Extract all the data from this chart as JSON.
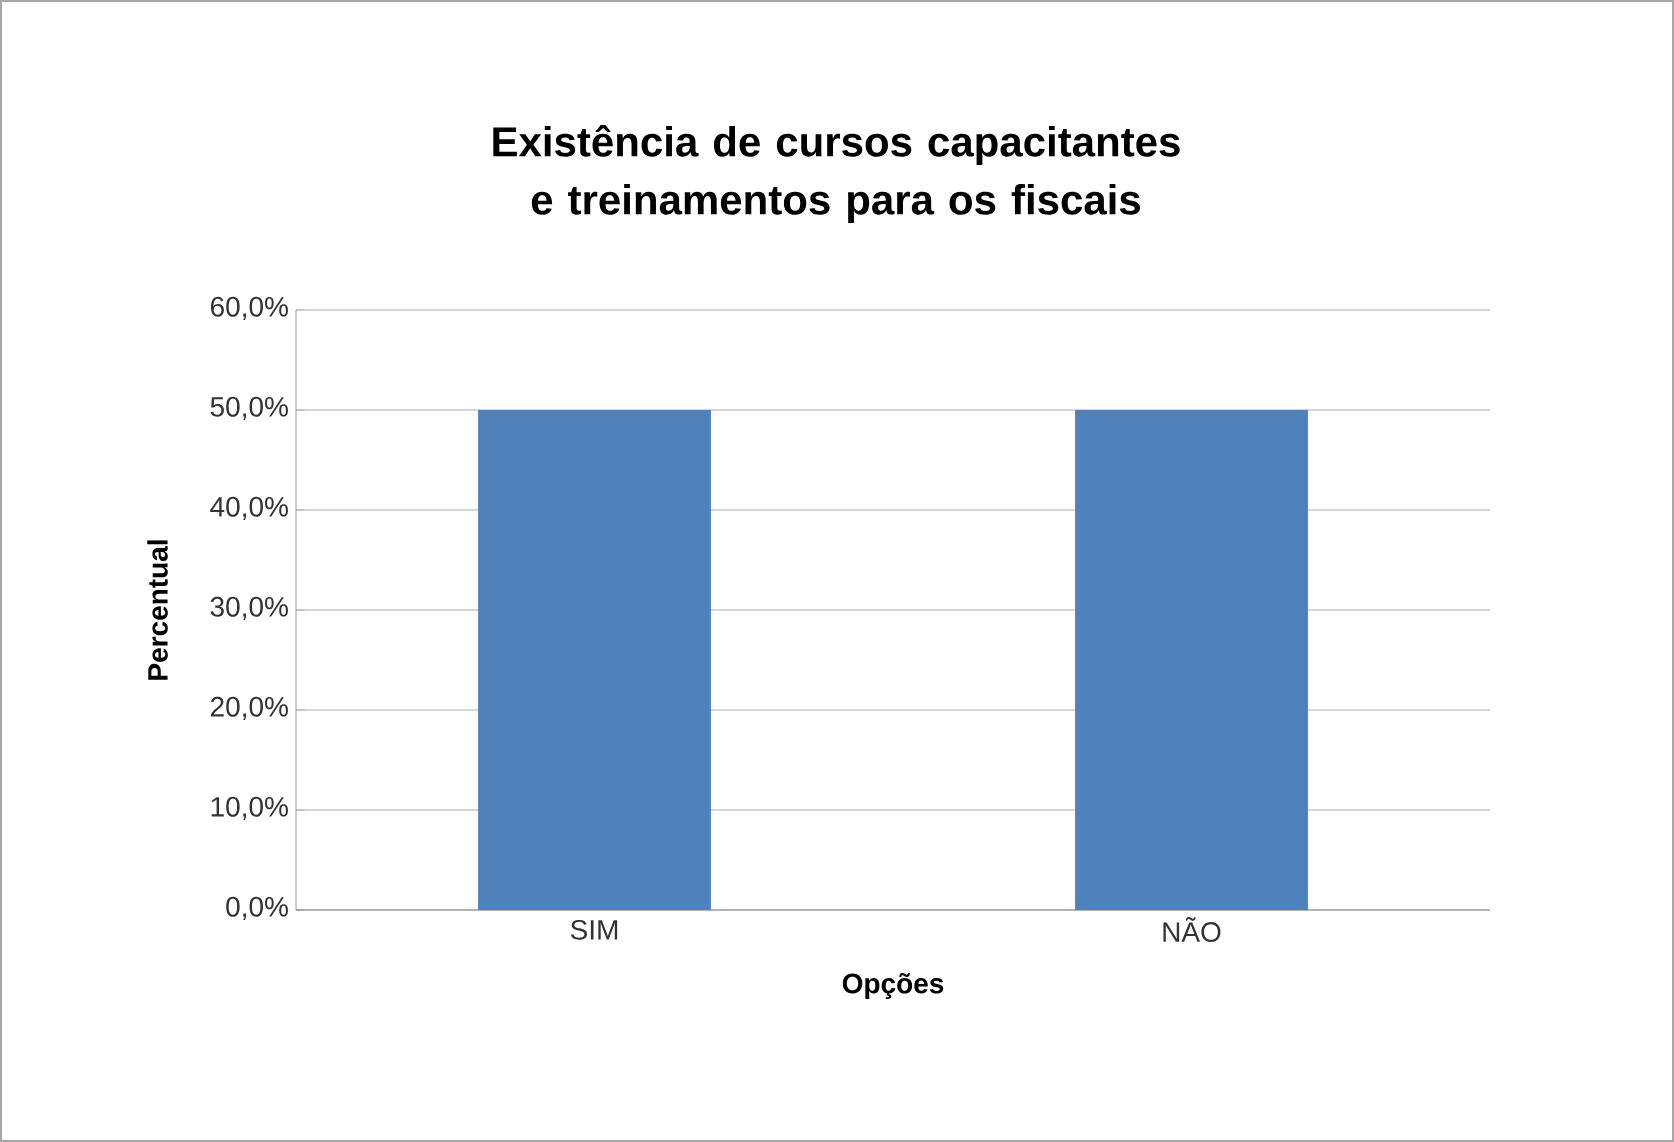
{
  "chart_data": {
    "type": "bar",
    "title": "Existência de cursos capacitantes e treinamentos para os fiscais",
    "xlabel": "Opções",
    "ylabel": "Percentual",
    "categories": [
      "SIM",
      "NÃO"
    ],
    "values": [
      50,
      50
    ],
    "color": "#4f81bd",
    "ylim": [
      0,
      60
    ],
    "yticks": [
      {
        "value": 0,
        "label": "0,0%"
      },
      {
        "value": 10,
        "label": "10,0%"
      },
      {
        "value": 20,
        "label": "20,0%"
      },
      {
        "value": 30,
        "label": "30,0%"
      },
      {
        "value": 40,
        "label": "40,0%"
      },
      {
        "value": 50,
        "label": "50,0%"
      },
      {
        "value": 60,
        "label": "60,0%"
      }
    ],
    "grid": "y"
  }
}
